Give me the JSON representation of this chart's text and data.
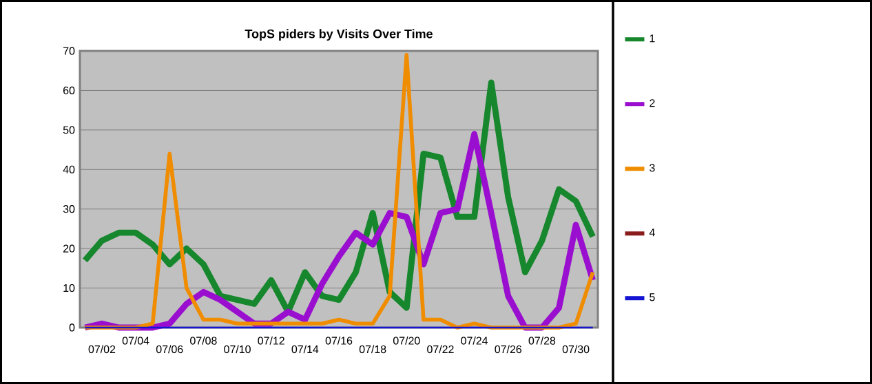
{
  "chart_data": {
    "type": "line",
    "title": "TopS piders by Visits Over Time",
    "categories": [
      null,
      "07/02",
      null,
      "07/04",
      null,
      "07/06",
      null,
      "07/08",
      null,
      "07/10",
      null,
      "07/12",
      null,
      "07/14",
      null,
      "07/16",
      null,
      "07/18",
      null,
      "07/20",
      null,
      "07/22",
      null,
      "07/24",
      null,
      "07/26",
      null,
      "07/28",
      null,
      "07/30",
      null
    ],
    "series": [
      {
        "name": "1",
        "color": "#16872c",
        "values": [
          17,
          22,
          24,
          24,
          21,
          16,
          20,
          16,
          8,
          7,
          6,
          12,
          4,
          14,
          8,
          7,
          14,
          29,
          9,
          5,
          44,
          43,
          28,
          28,
          62,
          33,
          14,
          22,
          35,
          32,
          23
        ]
      },
      {
        "name": "2",
        "color": "#9a0fcf",
        "values": [
          0,
          1,
          0,
          0,
          0,
          1,
          6,
          9,
          7,
          4,
          1,
          1,
          4,
          2,
          11,
          18,
          24,
          21,
          29,
          28,
          16,
          29,
          30,
          49,
          29,
          8,
          0,
          0,
          5,
          26,
          12
        ]
      },
      {
        "name": "3",
        "color": "#f08c00",
        "values": [
          0,
          0,
          0,
          0,
          1,
          44,
          10,
          2,
          2,
          1,
          1,
          1,
          1,
          1,
          1,
          2,
          1,
          1,
          8,
          69,
          2,
          2,
          0,
          1,
          0,
          0,
          0,
          0,
          0,
          1,
          14
        ]
      },
      {
        "name": "4",
        "color": "#8b1c1c",
        "values": [
          null,
          null,
          null,
          null,
          null,
          null,
          null,
          null,
          null,
          null,
          null,
          null,
          null,
          null,
          null,
          null,
          null,
          null,
          null,
          null,
          null,
          null,
          null,
          null,
          null,
          null,
          null,
          null,
          null,
          null,
          null
        ]
      },
      {
        "name": "5",
        "color": "#1414d2",
        "values": [
          0,
          0,
          0,
          0,
          0,
          0,
          0,
          0,
          0,
          0,
          0,
          0,
          0,
          0,
          0,
          0,
          0,
          0,
          0,
          0,
          0,
          0,
          0,
          0,
          0,
          0,
          0,
          0,
          0,
          0,
          0
        ]
      }
    ],
    "ylim": [
      0,
      70
    ],
    "yticks": [
      0,
      10,
      20,
      30,
      40,
      50,
      60,
      70
    ],
    "grid": "y",
    "legend": "right",
    "marker": "none",
    "line_style": "solid"
  }
}
